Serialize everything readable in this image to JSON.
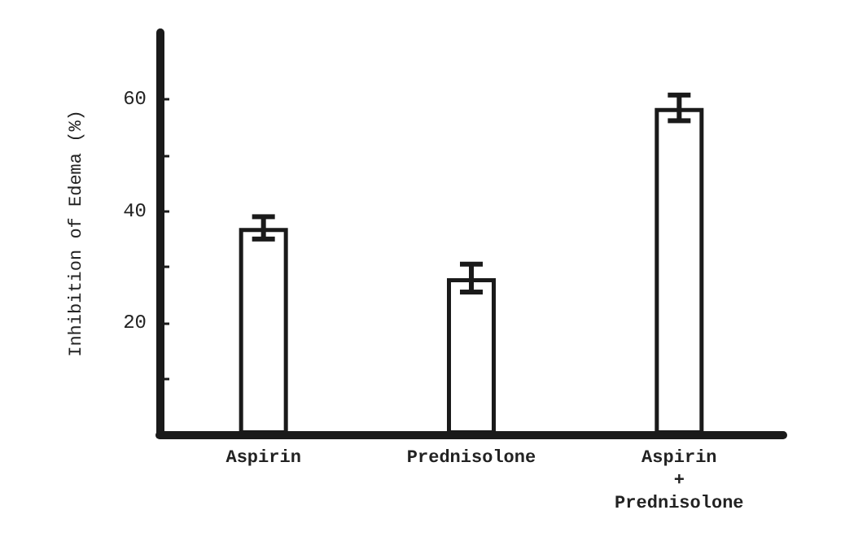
{
  "chart_data": {
    "type": "bar",
    "ylabel": "Inhibition of Edema (%)",
    "categories": [
      "Aspirin",
      "Prednisolone",
      "Aspirin\n+\nPrednisolone"
    ],
    "values": [
      37,
      28,
      58.5
    ],
    "errors": [
      2,
      2.5,
      2.3
    ],
    "color": "#1a1a1a",
    "ylim": [
      0,
      72
    ],
    "yticks": [
      {
        "value": 10,
        "label": null
      },
      20,
      {
        "value": 30,
        "label": null
      },
      40,
      {
        "value": 50,
        "label": null
      },
      60
    ],
    "grid": false
  }
}
